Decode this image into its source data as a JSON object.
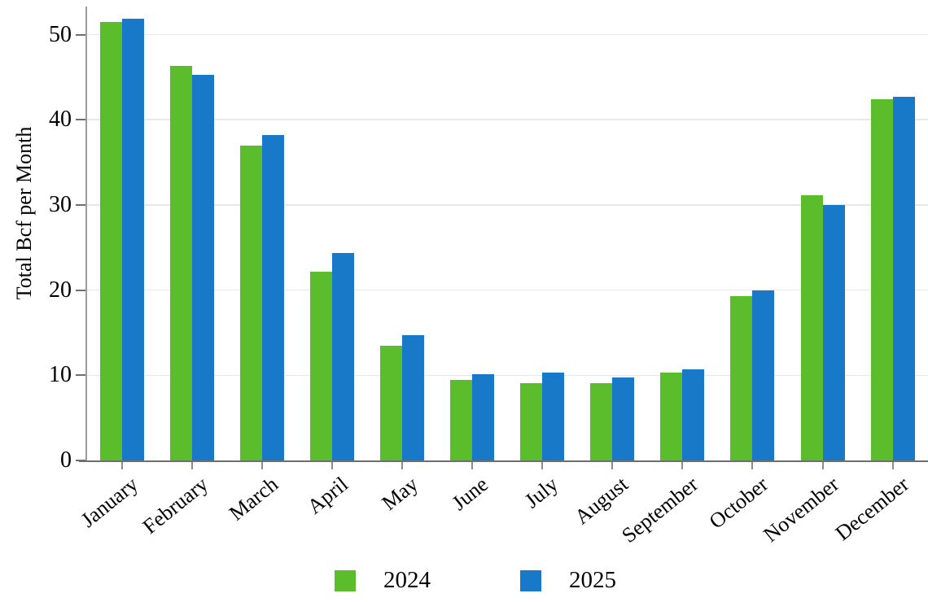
{
  "chart_data": {
    "type": "bar",
    "title": "",
    "xlabel": "",
    "ylabel": "Total Bcf per Month",
    "categories": [
      "January",
      "February",
      "March",
      "April",
      "May",
      "June",
      "July",
      "August",
      "September",
      "October",
      "November",
      "December"
    ],
    "series": [
      {
        "name": "2024",
        "color": "#5bbd2b",
        "values": [
          51.5,
          46.3,
          37.0,
          22.2,
          13.5,
          9.5,
          9.1,
          9.1,
          10.3,
          19.3,
          31.1,
          42.4
        ]
      },
      {
        "name": "2025",
        "color": "#1779c7",
        "values": [
          51.9,
          45.3,
          38.2,
          24.4,
          14.7,
          10.1,
          10.3,
          9.7,
          10.7,
          20.0,
          30.0,
          42.7
        ]
      }
    ],
    "ylim": [
      0,
      53
    ],
    "yticks": [
      0,
      10,
      20,
      30,
      40,
      50
    ],
    "grid": true,
    "legend_position": "bottom",
    "x_label_rotation_deg": -39
  },
  "colors": {
    "background": "#ffffff",
    "gridline": "#e8e8e8",
    "y_axis_line": "#9c9c9c",
    "x_axis_line": "#6e6e6e",
    "tick": "#6e6e6e",
    "text": "#000000"
  }
}
